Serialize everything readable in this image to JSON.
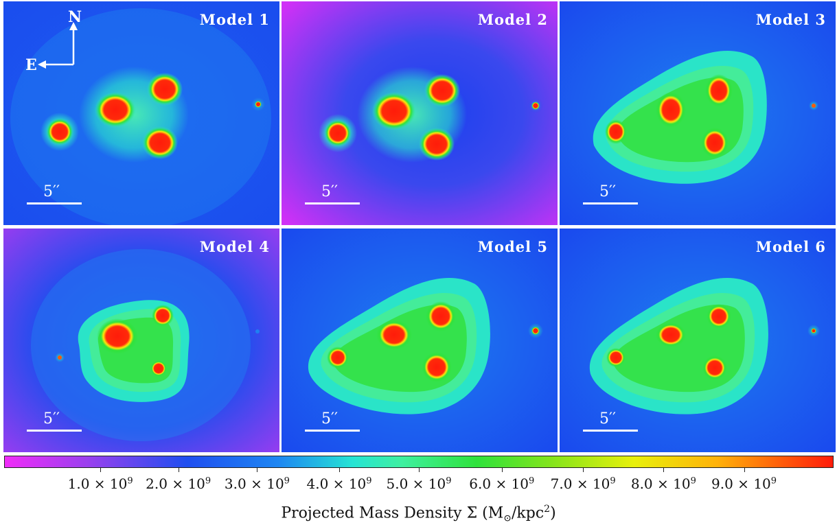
{
  "panels": [
    {
      "title": "Model 1",
      "scale_label": "5′′",
      "background": "#1e52ee"
    },
    {
      "title": "Model 2",
      "scale_label": "5′′",
      "background": "#a43cf0"
    },
    {
      "title": "Model 3",
      "scale_label": "5′′",
      "background": "#1e4cee"
    },
    {
      "title": "Model 4",
      "scale_label": "5′′",
      "background": "#7244f0"
    },
    {
      "title": "Model 5",
      "scale_label": "5′′",
      "background": "#1e4cee"
    },
    {
      "title": "Model 6",
      "scale_label": "5′′",
      "background": "#1e4cee"
    }
  ],
  "compass": {
    "north": "N",
    "east": "E"
  },
  "colorbar": {
    "tick_labels": [
      {
        "mantissa": "1.0",
        "times": " × ",
        "base": "10",
        "exponent": "9"
      },
      {
        "mantissa": "2.0",
        "times": " × ",
        "base": "10",
        "exponent": "9"
      },
      {
        "mantissa": "3.0",
        "times": " × ",
        "base": "10",
        "exponent": "9"
      },
      {
        "mantissa": "4.0",
        "times": " × ",
        "base": "10",
        "exponent": "9"
      },
      {
        "mantissa": "5.0",
        "times": " × ",
        "base": "10",
        "exponent": "9"
      },
      {
        "mantissa": "6.0",
        "times": " × ",
        "base": "10",
        "exponent": "9"
      },
      {
        "mantissa": "7.0",
        "times": " × ",
        "base": "10",
        "exponent": "9"
      },
      {
        "mantissa": "8.0",
        "times": " × ",
        "base": "10",
        "exponent": "9"
      },
      {
        "mantissa": "9.0",
        "times": " × ",
        "base": "10",
        "exponent": "9"
      }
    ],
    "title_main": "Projected Mass Density Σ (M",
    "title_sub": "⊙",
    "title_unit": "/kpc",
    "title_sup": "2",
    "title_end": ")"
  }
}
